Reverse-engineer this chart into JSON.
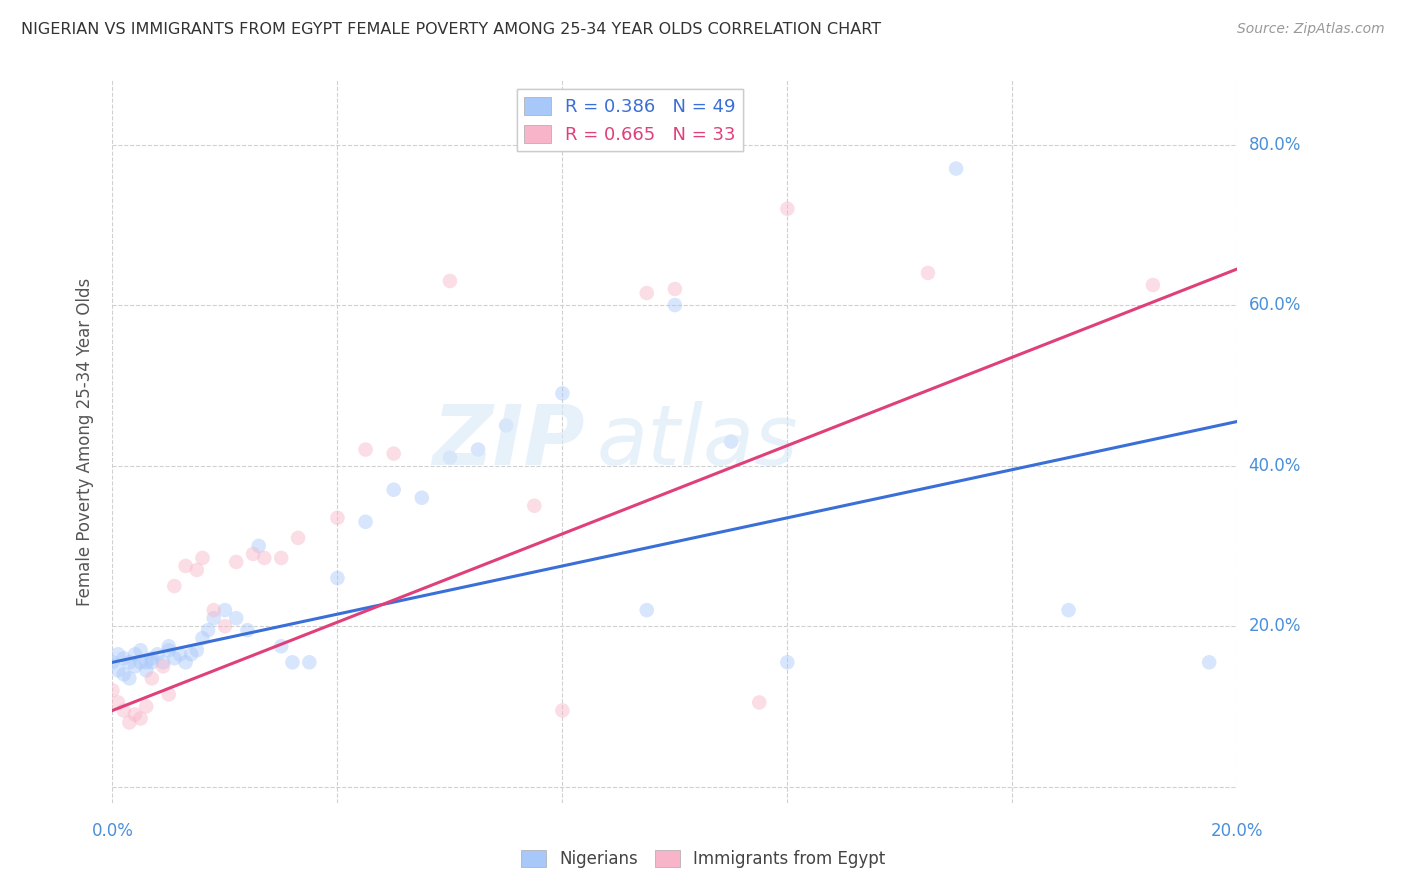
{
  "title": "NIGERIAN VS IMMIGRANTS FROM EGYPT FEMALE POVERTY AMONG 25-34 YEAR OLDS CORRELATION CHART",
  "source": "Source: ZipAtlas.com",
  "ylabel": "Female Poverty Among 25-34 Year Olds",
  "xlim": [
    0.0,
    0.2
  ],
  "ylim": [
    -0.02,
    0.88
  ],
  "y_ticks": [
    0.0,
    0.2,
    0.4,
    0.6,
    0.8
  ],
  "y_tick_labels": [
    "",
    "20.0%",
    "40.0%",
    "60.0%",
    "80.0%"
  ],
  "legend_entries": [
    {
      "label": "R = 0.386   N = 49",
      "color": "#a8c8fa"
    },
    {
      "label": "R = 0.665   N = 33",
      "color": "#f8b4c8"
    }
  ],
  "legend_bottom": [
    {
      "label": "Nigerians",
      "color": "#a8c8fa"
    },
    {
      "label": "Immigrants from Egypt",
      "color": "#f8b4c8"
    }
  ],
  "blue_scatter_x": [
    0.0,
    0.001,
    0.001,
    0.002,
    0.002,
    0.003,
    0.003,
    0.004,
    0.004,
    0.005,
    0.005,
    0.006,
    0.006,
    0.007,
    0.007,
    0.008,
    0.009,
    0.01,
    0.01,
    0.011,
    0.012,
    0.013,
    0.014,
    0.015,
    0.016,
    0.017,
    0.018,
    0.02,
    0.022,
    0.024,
    0.026,
    0.03,
    0.032,
    0.035,
    0.04,
    0.045,
    0.05,
    0.055,
    0.06,
    0.065,
    0.07,
    0.08,
    0.095,
    0.1,
    0.11,
    0.12,
    0.15,
    0.17,
    0.195
  ],
  "blue_scatter_y": [
    0.155,
    0.145,
    0.165,
    0.14,
    0.16,
    0.135,
    0.155,
    0.15,
    0.165,
    0.155,
    0.17,
    0.145,
    0.155,
    0.155,
    0.16,
    0.165,
    0.155,
    0.17,
    0.175,
    0.16,
    0.165,
    0.155,
    0.165,
    0.17,
    0.185,
    0.195,
    0.21,
    0.22,
    0.21,
    0.195,
    0.3,
    0.175,
    0.155,
    0.155,
    0.26,
    0.33,
    0.37,
    0.36,
    0.41,
    0.42,
    0.45,
    0.49,
    0.22,
    0.6,
    0.43,
    0.155,
    0.77,
    0.22,
    0.155
  ],
  "pink_scatter_x": [
    0.0,
    0.001,
    0.002,
    0.003,
    0.004,
    0.005,
    0.006,
    0.007,
    0.009,
    0.01,
    0.011,
    0.013,
    0.015,
    0.016,
    0.018,
    0.02,
    0.022,
    0.025,
    0.027,
    0.03,
    0.033,
    0.04,
    0.045,
    0.05,
    0.06,
    0.075,
    0.08,
    0.095,
    0.1,
    0.115,
    0.12,
    0.145,
    0.185
  ],
  "pink_scatter_y": [
    0.12,
    0.105,
    0.095,
    0.08,
    0.09,
    0.085,
    0.1,
    0.135,
    0.15,
    0.115,
    0.25,
    0.275,
    0.27,
    0.285,
    0.22,
    0.2,
    0.28,
    0.29,
    0.285,
    0.285,
    0.31,
    0.335,
    0.42,
    0.415,
    0.63,
    0.35,
    0.095,
    0.615,
    0.62,
    0.105,
    0.72,
    0.64,
    0.625
  ],
  "blue_color": "#a8c8fa",
  "pink_color": "#f8b4c8",
  "blue_line_color": "#3a6fd8",
  "pink_line_color": "#e0407a",
  "watermark_text": "ZIP",
  "watermark_text2": "atlas",
  "background_color": "#ffffff",
  "grid_color": "#d0d0d0",
  "title_color": "#333333",
  "axis_label_color": "#555555",
  "tick_color": "#4a90d9",
  "marker_size": 110,
  "marker_alpha": 0.45,
  "line_width": 2.2
}
